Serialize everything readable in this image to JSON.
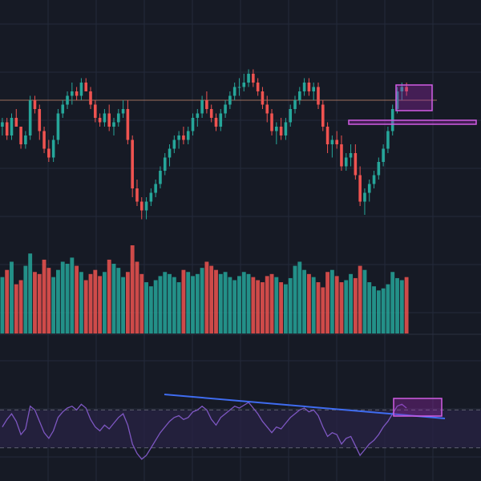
{
  "theme": {
    "background": "#161a25",
    "grid": "#242a3a",
    "bull": "#26a69a",
    "bear": "#ef5350",
    "rsi_line": "#7e57c2",
    "rsi_band": "#2a2346",
    "rsi_dash": "#5d5f6e",
    "trendline": "#3f6cf0",
    "zone_fill": "#9c27b0",
    "zone_stroke": "#d05ce3",
    "level_line": "#c98a6e"
  },
  "chart_data": [
    {
      "type": "candlestick",
      "price_ylim": [
        60,
        100
      ],
      "horizontal_level": 90,
      "ohlc": [
        [
          84,
          86,
          82,
          85
        ],
        [
          85,
          86,
          81,
          82
        ],
        [
          82,
          87,
          81,
          86
        ],
        [
          86,
          88,
          84,
          84
        ],
        [
          84,
          84,
          79,
          80
        ],
        [
          80,
          83,
          79,
          82
        ],
        [
          82,
          91,
          81,
          90
        ],
        [
          90,
          91,
          87,
          88
        ],
        [
          88,
          89,
          81,
          83
        ],
        [
          83,
          84,
          78,
          79
        ],
        [
          79,
          81,
          76,
          77
        ],
        [
          77,
          82,
          76,
          81
        ],
        [
          81,
          88,
          80,
          87
        ],
        [
          87,
          90,
          86,
          89
        ],
        [
          89,
          92,
          88,
          91
        ],
        [
          91,
          94,
          89,
          92
        ],
        [
          92,
          93,
          90,
          91
        ],
        [
          91,
          95,
          90,
          94
        ],
        [
          94,
          95,
          92,
          92
        ],
        [
          92,
          93,
          88,
          89
        ],
        [
          89,
          90,
          85,
          86
        ],
        [
          86,
          87,
          84,
          85
        ],
        [
          85,
          88,
          84,
          87
        ],
        [
          87,
          89,
          83,
          84
        ],
        [
          84,
          86,
          82,
          85
        ],
        [
          85,
          88,
          84,
          87
        ],
        [
          87,
          90,
          86,
          88
        ],
        [
          88,
          90,
          80,
          81
        ],
        [
          81,
          82,
          68,
          70
        ],
        [
          70,
          72,
          66,
          67
        ],
        [
          67,
          68,
          63,
          65
        ],
        [
          65,
          68,
          63,
          67
        ],
        [
          67,
          70,
          66,
          69
        ],
        [
          69,
          72,
          68,
          71
        ],
        [
          71,
          75,
          70,
          74
        ],
        [
          74,
          78,
          73,
          77
        ],
        [
          77,
          80,
          75,
          79
        ],
        [
          79,
          82,
          78,
          81
        ],
        [
          81,
          83,
          79,
          82
        ],
        [
          82,
          84,
          80,
          81
        ],
        [
          81,
          84,
          80,
          83
        ],
        [
          83,
          87,
          82,
          86
        ],
        [
          86,
          88,
          84,
          87
        ],
        [
          87,
          91,
          86,
          90
        ],
        [
          90,
          92,
          87,
          88
        ],
        [
          88,
          89,
          85,
          86
        ],
        [
          86,
          87,
          83,
          84
        ],
        [
          84,
          88,
          83,
          87
        ],
        [
          87,
          90,
          86,
          89
        ],
        [
          89,
          92,
          88,
          91
        ],
        [
          91,
          94,
          90,
          93
        ],
        [
          93,
          95,
          91,
          93
        ],
        [
          93,
          96,
          92,
          94
        ],
        [
          94,
          97,
          93,
          96
        ],
        [
          96,
          97,
          93,
          94
        ],
        [
          94,
          95,
          91,
          92
        ],
        [
          92,
          93,
          88,
          89
        ],
        [
          89,
          91,
          85,
          87
        ],
        [
          87,
          88,
          82,
          83
        ],
        [
          83,
          85,
          80,
          84
        ],
        [
          84,
          86,
          81,
          82
        ],
        [
          82,
          86,
          81,
          85
        ],
        [
          85,
          89,
          84,
          88
        ],
        [
          88,
          91,
          87,
          90
        ],
        [
          90,
          93,
          89,
          92
        ],
        [
          92,
          95,
          91,
          94
        ],
        [
          94,
          95,
          91,
          92
        ],
        [
          92,
          94,
          90,
          93
        ],
        [
          93,
          94,
          88,
          89
        ],
        [
          89,
          90,
          83,
          84
        ],
        [
          84,
          85,
          78,
          80
        ],
        [
          80,
          82,
          77,
          81
        ],
        [
          81,
          83,
          79,
          80
        ],
        [
          80,
          82,
          74,
          75
        ],
        [
          75,
          78,
          74,
          77
        ],
        [
          77,
          80,
          75,
          78
        ],
        [
          78,
          80,
          72,
          73
        ],
        [
          73,
          75,
          66,
          67
        ],
        [
          67,
          70,
          64,
          69
        ],
        [
          69,
          72,
          67,
          71
        ],
        [
          71,
          74,
          70,
          73
        ],
        [
          73,
          77,
          72,
          76
        ],
        [
          76,
          80,
          75,
          79
        ],
        [
          79,
          84,
          78,
          83
        ],
        [
          83,
          89,
          82,
          88
        ],
        [
          88,
          93,
          87,
          92
        ],
        [
          92,
          94,
          90,
          93
        ],
        [
          93,
          94,
          91,
          92
        ]
      ],
      "volume": [
        55,
        62,
        70,
        48,
        52,
        66,
        78,
        60,
        58,
        72,
        64,
        55,
        62,
        70,
        68,
        74,
        66,
        60,
        52,
        58,
        62,
        56,
        60,
        72,
        68,
        64,
        55,
        60,
        86,
        70,
        58,
        50,
        46,
        52,
        56,
        60,
        58,
        55,
        50,
        62,
        60,
        56,
        58,
        64,
        70,
        66,
        62,
        58,
        60,
        55,
        52,
        56,
        60,
        58,
        55,
        52,
        50,
        56,
        58,
        55,
        50,
        48,
        54,
        66,
        70,
        62,
        58,
        55,
        50,
        45,
        60,
        62,
        56,
        50,
        52,
        58,
        54,
        66,
        62,
        50,
        46,
        42,
        44,
        48,
        60,
        54,
        52,
        55
      ]
    },
    {
      "type": "line",
      "indicator": "RSI",
      "ylim": [
        0,
        100
      ],
      "bands": [
        70,
        30
      ],
      "values": [
        52,
        60,
        66,
        58,
        44,
        50,
        74,
        70,
        58,
        46,
        40,
        48,
        62,
        68,
        72,
        74,
        70,
        76,
        72,
        60,
        52,
        48,
        54,
        50,
        56,
        62,
        66,
        54,
        34,
        24,
        18,
        22,
        30,
        38,
        46,
        52,
        58,
        62,
        64,
        60,
        62,
        68,
        70,
        74,
        70,
        60,
        54,
        62,
        66,
        70,
        74,
        72,
        75,
        78,
        72,
        66,
        58,
        52,
        46,
        52,
        50,
        56,
        62,
        66,
        70,
        72,
        68,
        70,
        64,
        52,
        42,
        46,
        44,
        34,
        40,
        42,
        32,
        22,
        28,
        34,
        38,
        44,
        52,
        58,
        66,
        74,
        76,
        72
      ]
    }
  ]
}
